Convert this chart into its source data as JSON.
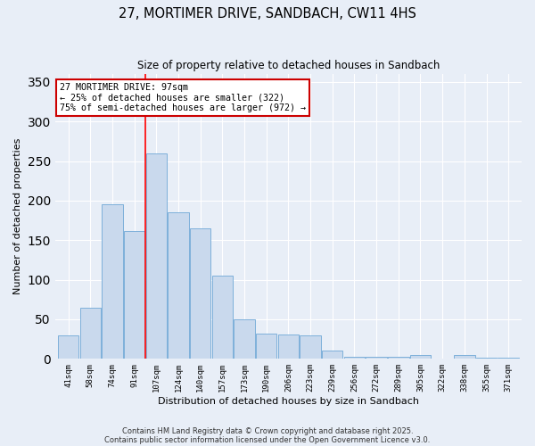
{
  "title": "27, MORTIMER DRIVE, SANDBACH, CW11 4HS",
  "subtitle": "Size of property relative to detached houses in Sandbach",
  "xlabel": "Distribution of detached houses by size in Sandbach",
  "ylabel": "Number of detached properties",
  "bar_color": "#c9d9ed",
  "bar_edge_color": "#6fa8d6",
  "categories": [
    "41sqm",
    "58sqm",
    "74sqm",
    "91sqm",
    "107sqm",
    "124sqm",
    "140sqm",
    "157sqm",
    "173sqm",
    "190sqm",
    "206sqm",
    "223sqm",
    "239sqm",
    "256sqm",
    "272sqm",
    "289sqm",
    "305sqm",
    "322sqm",
    "338sqm",
    "355sqm",
    "371sqm"
  ],
  "values": [
    30,
    65,
    196,
    162,
    260,
    185,
    165,
    105,
    50,
    32,
    31,
    30,
    11,
    3,
    3,
    3,
    5,
    0,
    5,
    2,
    2
  ],
  "ylim": [
    0,
    360
  ],
  "yticks": [
    0,
    50,
    100,
    150,
    200,
    250,
    300,
    350
  ],
  "red_line_x": 3.5,
  "annotation_text": "27 MORTIMER DRIVE: 97sqm\n← 25% of detached houses are smaller (322)\n75% of semi-detached houses are larger (972) →",
  "annotation_box_color": "#ffffff",
  "annotation_box_edge_color": "#cc0000",
  "footer_line1": "Contains HM Land Registry data © Crown copyright and database right 2025.",
  "footer_line2": "Contains public sector information licensed under the Open Government Licence v3.0.",
  "background_color": "#e8eef7",
  "plot_background_color": "#e8eef7",
  "grid_color": "#ffffff"
}
